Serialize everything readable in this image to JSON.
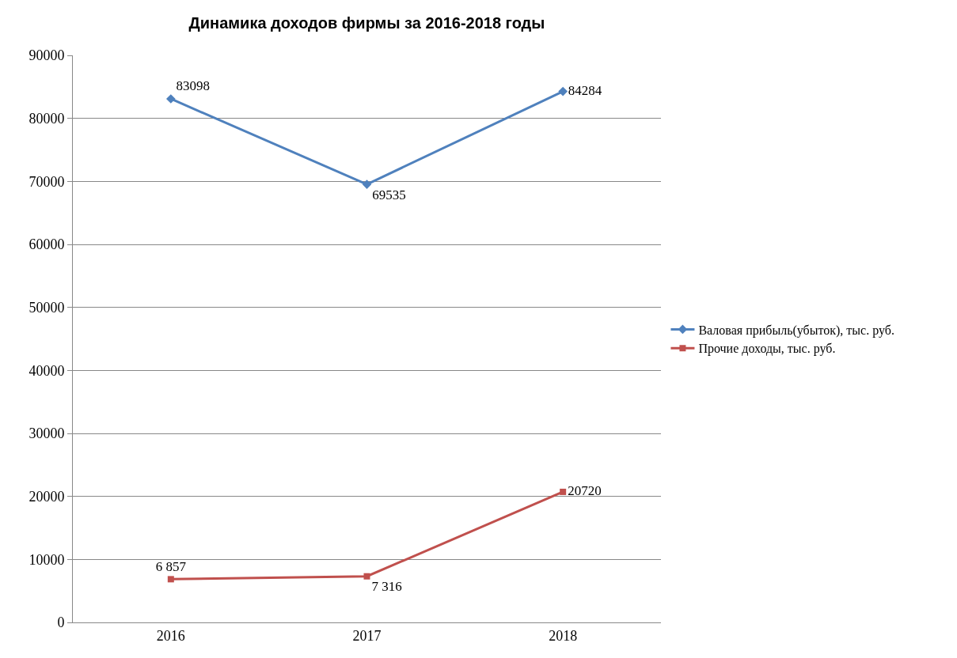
{
  "chart_data": {
    "type": "line",
    "title": "Динамика доходов фирмы за 2016-2018 годы",
    "categories": [
      "2016",
      "2017",
      "2018"
    ],
    "series": [
      {
        "name": "Валовая прибыль(убыток), тыс. руб.",
        "color": "#4f81bd",
        "marker": "diamond",
        "values": [
          83098,
          69535,
          84284
        ],
        "value_labels": [
          "83098",
          "69535",
          "84284"
        ]
      },
      {
        "name": "Прочие доходы, тыс. руб.",
        "color": "#c0504d",
        "marker": "square",
        "values": [
          6857,
          7316,
          20720
        ],
        "value_labels": [
          "6 857",
          "7 316",
          "20720"
        ]
      }
    ],
    "ylim": [
      0,
      90000
    ],
    "yticks": [
      0,
      10000,
      20000,
      30000,
      40000,
      50000,
      60000,
      70000,
      80000,
      90000
    ],
    "grid": "y",
    "legend": "right",
    "line_style": "solid"
  }
}
